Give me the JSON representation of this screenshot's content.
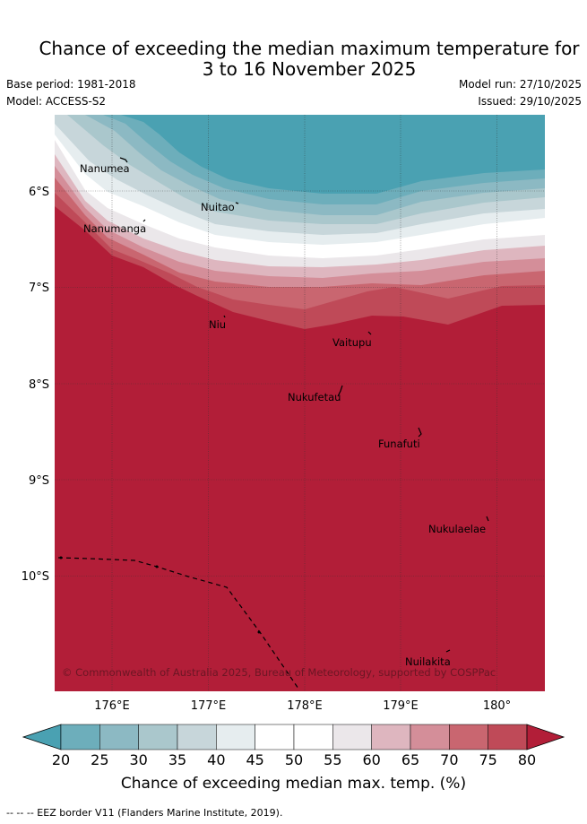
{
  "title_line1": "Chance of exceeding the median maximum temperature for",
  "title_line2": "3 to 16 November 2025",
  "base_period": "Base period: 1981-2018",
  "model": "Model: ACCESS-S2",
  "model_run": "Model run: 27/10/2025",
  "issued": "Issued: 29/10/2025",
  "lat_labels": [
    "6°S",
    "7°S",
    "8°S",
    "9°S",
    "10°S"
  ],
  "lon_labels": [
    "176°E",
    "177°E",
    "178°E",
    "179°E",
    "180°"
  ],
  "islands": [
    "Nanumea",
    "Nuitao",
    "Nanumanga",
    "Niu",
    "Vaitupu",
    "Nukufetau",
    "Funafuti",
    "Nukulaelae",
    "Nuilakita"
  ],
  "copyright": "© Commonwealth of Australia 2025, Bureau of Meteorology, supported by COSPPac",
  "colorbar": {
    "ticks": [
      "20",
      "25",
      "30",
      "35",
      "40",
      "45",
      "50",
      "55",
      "60",
      "65",
      "70",
      "75",
      "80"
    ],
    "colors": [
      "#4aa1b2",
      "#6daebb",
      "#8cb9c3",
      "#aac7cc",
      "#c7d6da",
      "#e6edef",
      "#ffffff",
      "#ffffff",
      "#ebe7ea",
      "#deb6bf",
      "#d48e99",
      "#c96670",
      "#bf4a58",
      "#b21e38"
    ],
    "title": "Chance of exceeding median max. temp. (%)"
  },
  "footnote": "-- -- -- EEZ border V11 (Flanders Marine Institute, 2019)."
}
